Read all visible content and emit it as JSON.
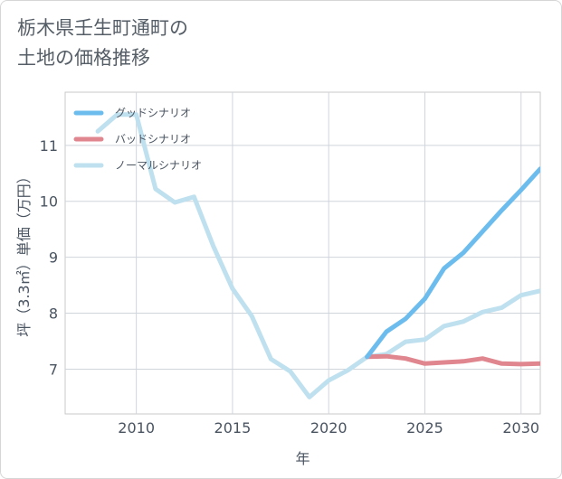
{
  "title_lines": [
    "栃木県壬生町通町の",
    "土地の価格推移"
  ],
  "chart_data": {
    "type": "line",
    "xlabel": "年",
    "ylabel": "坪（3.3㎡）単価（万円）",
    "xlim": [
      2006.3,
      2031
    ],
    "ylim": [
      6.2,
      11.95
    ],
    "x_ticks": [
      2010,
      2015,
      2020,
      2025,
      2030
    ],
    "y_ticks": [
      7,
      8,
      9,
      10,
      11
    ],
    "grid": true,
    "legend_position": "top-left",
    "series": [
      {
        "name": "グッドシナリオ",
        "color": "#6cbcee",
        "x": [
          2022,
          2023,
          2024,
          2025,
          2026,
          2027,
          2028,
          2029,
          2030,
          2031
        ],
        "y": [
          7.22,
          7.67,
          7.9,
          8.26,
          8.8,
          9.08,
          9.46,
          9.84,
          10.2,
          10.58
        ]
      },
      {
        "name": "バッドシナリオ",
        "color": "#e0868f",
        "x": [
          2022,
          2023,
          2024,
          2025,
          2026,
          2027,
          2028,
          2029,
          2030,
          2031
        ],
        "y": [
          7.22,
          7.23,
          7.19,
          7.1,
          7.12,
          7.14,
          7.19,
          7.1,
          7.09,
          7.1
        ]
      },
      {
        "name": "ノーマルシナリオ",
        "color": "#bfe0ee",
        "x": [
          2008,
          2009,
          2010,
          2011,
          2012,
          2013,
          2014,
          2015,
          2016,
          2017,
          2018,
          2019,
          2020,
          2021,
          2022,
          2023,
          2024,
          2025,
          2026,
          2027,
          2028,
          2029,
          2030,
          2031
        ],
        "y": [
          11.25,
          11.55,
          11.55,
          10.22,
          9.98,
          10.08,
          9.2,
          8.44,
          7.95,
          7.18,
          6.96,
          6.5,
          6.8,
          6.98,
          7.22,
          7.27,
          7.49,
          7.53,
          7.77,
          7.85,
          8.02,
          8.1,
          8.32,
          8.4
        ]
      }
    ]
  }
}
